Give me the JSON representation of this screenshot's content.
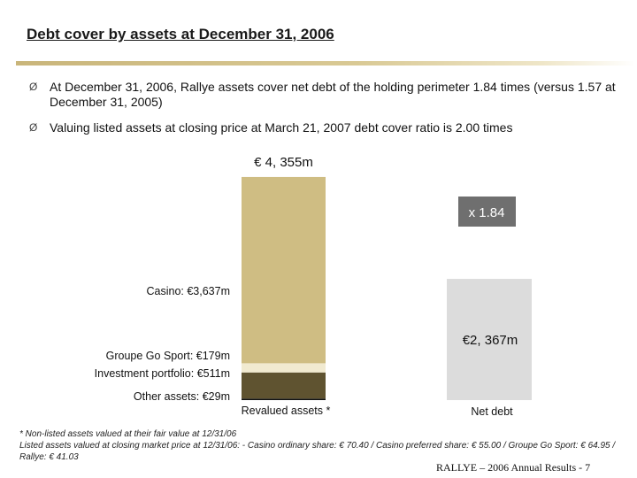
{
  "title": "Debt cover by assets at December 31, 2006",
  "bullets": [
    {
      "icon": "arrow-bullet-icon",
      "mark": "Ø",
      "text": "At December 31, 2006, Rallye assets cover net debt of the holding perimeter 1.84 times (versus 1.57 at December 31, 2005)"
    },
    {
      "icon": "arrow-bullet-icon",
      "mark": "Ø",
      "text": "Valuing listed assets at closing price at March 21, 2007 debt cover ratio is 2.00 times"
    }
  ],
  "chart_data": {
    "type": "bar",
    "stacked": true,
    "categories": [
      "Revalued assets *",
      "Net debt"
    ],
    "series": [
      {
        "name": "Other assets: €29m",
        "values": [
          29,
          0
        ],
        "color": "#111111"
      },
      {
        "name": "Investment portfolio: €511m",
        "values": [
          511,
          0
        ],
        "color": "#5f5330"
      },
      {
        "name": "Groupe Go Sport: €179m",
        "values": [
          179,
          0
        ],
        "color": "#f1ead0"
      },
      {
        "name": "Casino: €3,637m",
        "values": [
          3637,
          0
        ],
        "color": "#cfbd83"
      },
      {
        "name": "",
        "values": [
          0,
          2367
        ],
        "color": "#dcdcdc"
      }
    ],
    "totals": [
      "€ 4, 355m",
      "€2, 367m"
    ],
    "ratio_label": "x 1.84",
    "ratio_color": "#6f6f6f",
    "ylim": [
      0,
      4355
    ],
    "legend": "left-labels",
    "grid": false
  },
  "footnotes": [
    "* Non-listed assets valued at their fair value at 12/31/06",
    "Listed assets valued at closing market price at 12/31/06: - Casino ordinary share: € 70.40 / Casino preferred share: € 55.00 / Groupe Go Sport: € 64.95 / Rallye: € 41.03"
  ],
  "footer": "RALLYE – 2006 Annual Results - 7"
}
